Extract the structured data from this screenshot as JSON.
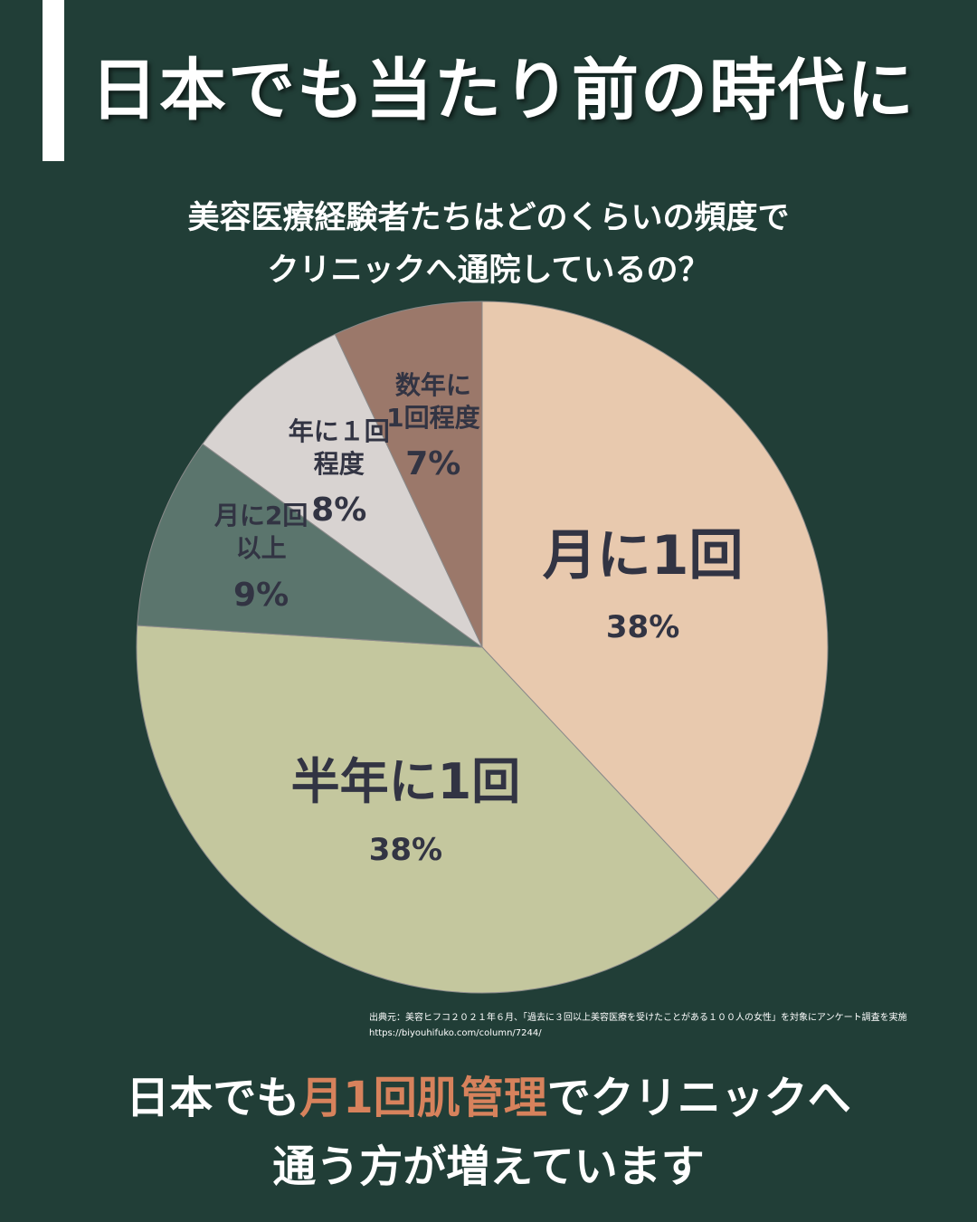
{
  "header": {
    "title": "日本でも当たり前の時代に"
  },
  "question": {
    "line1": "美容医療経験者たちはどのくらいの頻度で",
    "line2": "クリニックへ通院しているの？"
  },
  "chart_data": {
    "type": "pie",
    "title": "",
    "slices": [
      {
        "label": "月に1回",
        "value": 38,
        "value_label": "38%",
        "color": "#e8c9ae"
      },
      {
        "label": "半年に1回",
        "value": 38,
        "value_label": "38%",
        "color": "#c4c79e"
      },
      {
        "label": "月に2回\n以上",
        "value": 9,
        "value_label": "9%",
        "color": "#5b756d"
      },
      {
        "label": "年に１回\n程度",
        "value": 8,
        "value_label": "8%",
        "color": "#d8d3d1"
      },
      {
        "label": "数年に\n1回程度",
        "value": 7,
        "value_label": "7%",
        "color": "#9b786a"
      }
    ],
    "start_angle_deg": 0,
    "direction": "clockwise",
    "label_color": "#323443",
    "border_color": "#8a8a8a"
  },
  "source": {
    "line1": "出典元：美容ヒフコ２０２１年６月、「過去に３回以上美容医療を受けたことがある１００人の女性」を対象にアンケート調査を実施",
    "line2": "https://biyouhifuko.com/column/7244/"
  },
  "footer": {
    "part1": "日本でも",
    "highlight": "月1回肌管理",
    "part2": "でクリニックへ",
    "line2": "通う方が増えています"
  }
}
